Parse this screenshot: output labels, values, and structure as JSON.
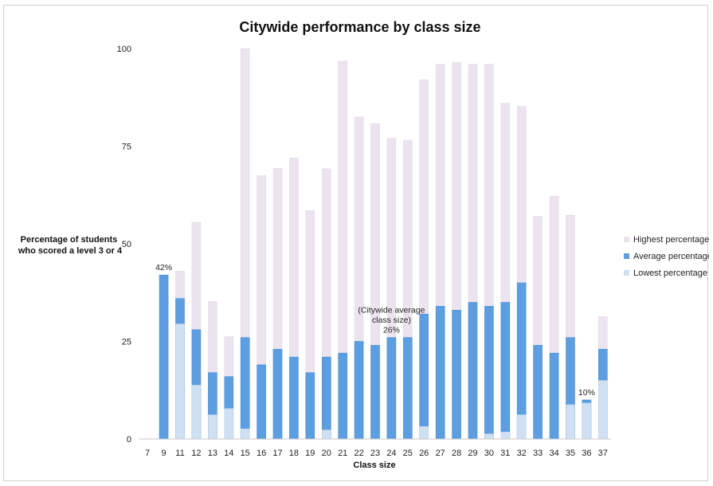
{
  "chart_data": {
    "type": "bar",
    "title": "Citywide performance by class size",
    "xlabel": "Class size",
    "ylabel_lines": [
      "Percentage of students",
      "who scored a level 3 or 4"
    ],
    "ylim": [
      0,
      100
    ],
    "yticks": [
      0,
      25,
      50,
      75,
      100
    ],
    "categories": [
      "7",
      "9",
      "11",
      "12",
      "13",
      "14",
      "15",
      "16",
      "17",
      "18",
      "19",
      "20",
      "21",
      "22",
      "23",
      "24",
      "25",
      "26",
      "27",
      "28",
      "29",
      "30",
      "31",
      "32",
      "33",
      "34",
      "35",
      "36",
      "37"
    ],
    "series": [
      {
        "name": "Highest percentage",
        "color": "#ebe4ee",
        "values": [
          null,
          42,
          43,
          55.5,
          35.2,
          26.2,
          100,
          67.5,
          69.3,
          72,
          58.5,
          69.2,
          96.8,
          82.5,
          80.8,
          77,
          76.5,
          92,
          96,
          96.5,
          96,
          96,
          86,
          85.2,
          57,
          62.2,
          57.3,
          10,
          31.3
        ]
      },
      {
        "name": "Average percentage",
        "color": "#5c9ee0",
        "values": [
          null,
          42,
          36,
          28,
          17,
          16,
          26,
          19,
          23,
          21,
          17,
          21,
          22,
          25,
          24,
          26,
          26,
          32,
          34,
          33,
          35,
          34,
          35,
          40,
          24,
          22,
          26,
          10,
          23
        ]
      },
      {
        "name": "Lowest percentage",
        "color": "#cfe0f3",
        "values": [
          null,
          null,
          29.5,
          13.8,
          6.2,
          7.8,
          2.6,
          null,
          null,
          null,
          null,
          2.3,
          null,
          null,
          null,
          null,
          null,
          3.2,
          null,
          null,
          null,
          1.3,
          1.8,
          6.2,
          null,
          null,
          8.8,
          9.2,
          15
        ]
      }
    ],
    "annotations": [
      {
        "category": "9",
        "lines": [
          "42%"
        ]
      },
      {
        "category": "24",
        "lines": [
          "(Citywide average",
          "class size)",
          "26%"
        ]
      },
      {
        "category": "36",
        "lines": [
          "10%"
        ]
      }
    ],
    "legend_position": "right",
    "grid": false
  }
}
